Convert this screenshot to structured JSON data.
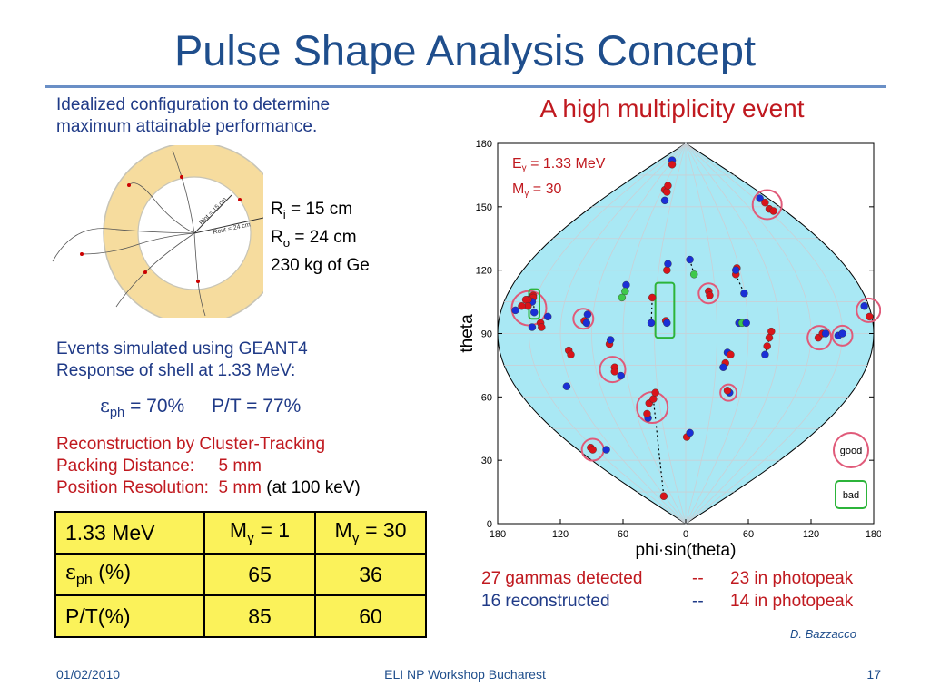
{
  "slide": {
    "title": "Pulse Shape Analysis Concept",
    "intro_line1": "Idealized configuration to determine",
    "intro_line2": "maximum attainable performance.",
    "shell": {
      "ri_label": "R",
      "ri_sub": "i",
      "ri_value": "  = 15 cm",
      "ro_label": "R",
      "ro_sub": "o",
      "ro_value": " = 24 cm",
      "mass": "230 kg of Ge",
      "inner_arrow_label": "Rint = 15 cm",
      "outer_arrow_label": "Rout = 24 cm",
      "colors": {
        "shell": "#f6dc9e",
        "shell_edge": "#c7c4b6"
      }
    },
    "events_line1": "Events simulated using GEANT4",
    "events_line2": "Response of shell at 1.33 MeV:",
    "eph_symbol": "ε",
    "eph_sub": "ph",
    "eph_value": " = 70%",
    "pt_value": "P/T = 77%",
    "recon_line1": "Reconstruction by Cluster-Tracking",
    "recon_line2": "Packing Distance:     5 mm",
    "recon_line3": "Position Resolution:  5 mm ",
    "recon_line3_black": "(at 100 keV)",
    "event_title": "A high multiplicity event",
    "table": {
      "h1": "1.33 MeV",
      "h2_pre": "M",
      "h2_sub": "γ",
      "h2_post": " = 1",
      "h3_pre": "M",
      "h3_sub": "γ",
      "h3_post": " = 30",
      "r1_sym": "ε",
      "r1_sub": "ph",
      "r1_post": " (%)",
      "r1_v1": "65",
      "r1_v2": "36",
      "r2_label": "P/T(%)",
      "r2_v1": "85",
      "r2_v2": "60"
    },
    "summary": {
      "l1_left": "27 gammas detected",
      "l1_sep": "--",
      "l1_right": "23 in photopeak",
      "l2_left": "16 reconstructed",
      "l2_sep": "--",
      "l2_right": "14 in photopeak"
    },
    "credit": "D. Bazzacco",
    "footer_date": "01/02/2010",
    "footer_center": "ELI NP Workshop Bucharest",
    "footer_page": "17"
  },
  "chart_data": {
    "type": "scatter",
    "projection": "sinusoidal",
    "xlabel": "phi·sin(theta)",
    "ylabel": "theta",
    "x_ticks": [
      "180",
      "120",
      "60",
      "0",
      "60",
      "120",
      "180"
    ],
    "y_ticks": [
      "0",
      "30",
      "60",
      "90",
      "120",
      "150",
      "180"
    ],
    "xlim": [
      -180,
      180
    ],
    "ylim": [
      0,
      180
    ],
    "annotation_energy": "E",
    "annotation_energy_sub": "γ",
    "annotation_energy_value": " = 1.33 MeV",
    "annotation_mult": "M",
    "annotation_mult_sub": "γ",
    "annotation_mult_value": " = 30",
    "legend_good": "good",
    "legend_bad": "bad",
    "colors": {
      "fill": "#a9e8f4",
      "good": "#e05a79",
      "bad": "#2cb43a",
      "red": "#d8141a",
      "blue": "#1a2fd6",
      "green": "#3fc84c"
    },
    "points": [
      {
        "x": -147,
        "y": 93,
        "c": "blue"
      },
      {
        "x": -146,
        "y": 108,
        "c": "red"
      },
      {
        "x": -146,
        "y": 107,
        "c": "red"
      },
      {
        "x": -147,
        "y": 105,
        "c": "blue"
      },
      {
        "x": -145,
        "y": 100,
        "c": "blue"
      },
      {
        "x": -151,
        "y": 106,
        "c": "red"
      },
      {
        "x": -153,
        "y": 106,
        "c": "red"
      },
      {
        "x": -151,
        "y": 103,
        "c": "red"
      },
      {
        "x": -157,
        "y": 103,
        "c": "red"
      },
      {
        "x": -163,
        "y": 101,
        "c": "blue"
      },
      {
        "x": -132,
        "y": 98,
        "c": "blue"
      },
      {
        "x": -139,
        "y": 95,
        "c": "red"
      },
      {
        "x": -138,
        "y": 93,
        "c": "red"
      },
      {
        "x": -114,
        "y": 65,
        "c": "blue"
      },
      {
        "x": -112,
        "y": 82,
        "c": "red"
      },
      {
        "x": -110,
        "y": 80,
        "c": "red"
      },
      {
        "x": -97,
        "y": 96,
        "c": "red"
      },
      {
        "x": -95,
        "y": 95,
        "c": "blue"
      },
      {
        "x": -94,
        "y": 99,
        "c": "blue"
      },
      {
        "x": -91,
        "y": 36,
        "c": "red"
      },
      {
        "x": -89,
        "y": 35,
        "c": "red"
      },
      {
        "x": -76,
        "y": 35,
        "c": "blue"
      },
      {
        "x": -73,
        "y": 85,
        "c": "red"
      },
      {
        "x": -72,
        "y": 87,
        "c": "blue"
      },
      {
        "x": -68,
        "y": 74,
        "c": "red"
      },
      {
        "x": -68,
        "y": 72,
        "c": "red"
      },
      {
        "x": -62,
        "y": 70,
        "c": "blue"
      },
      {
        "x": -57,
        "y": 113,
        "c": "blue"
      },
      {
        "x": -58,
        "y": 110,
        "c": "green"
      },
      {
        "x": -61,
        "y": 107,
        "c": "green"
      },
      {
        "x": -36,
        "y": 50,
        "c": "blue"
      },
      {
        "x": -37,
        "y": 52,
        "c": "red"
      },
      {
        "x": -35,
        "y": 57,
        "c": "red"
      },
      {
        "x": -31,
        "y": 59,
        "c": "red"
      },
      {
        "x": -29,
        "y": 62,
        "c": "red"
      },
      {
        "x": -33,
        "y": 95,
        "c": "blue"
      },
      {
        "x": -32,
        "y": 107,
        "c": "red"
      },
      {
        "x": -19,
        "y": 96,
        "c": "red"
      },
      {
        "x": -18,
        "y": 95,
        "c": "blue"
      },
      {
        "x": -21,
        "y": 13,
        "c": "red"
      },
      {
        "x": -13,
        "y": 172,
        "c": "blue"
      },
      {
        "x": -13,
        "y": 170,
        "c": "red"
      },
      {
        "x": -20,
        "y": 158,
        "c": "red"
      },
      {
        "x": -18,
        "y": 157,
        "c": "red"
      },
      {
        "x": -17,
        "y": 160,
        "c": "red"
      },
      {
        "x": -20,
        "y": 153,
        "c": "blue"
      },
      {
        "x": -18,
        "y": 120,
        "c": "red"
      },
      {
        "x": -17,
        "y": 123,
        "c": "blue"
      },
      {
        "x": 1,
        "y": 41,
        "c": "red"
      },
      {
        "x": 4,
        "y": 43,
        "c": "blue"
      },
      {
        "x": 4,
        "y": 125,
        "c": "blue"
      },
      {
        "x": 8,
        "y": 118,
        "c": "green"
      },
      {
        "x": 22,
        "y": 110,
        "c": "red"
      },
      {
        "x": 23,
        "y": 108,
        "c": "red"
      },
      {
        "x": 48,
        "y": 118,
        "c": "red"
      },
      {
        "x": 49,
        "y": 121,
        "c": "red"
      },
      {
        "x": 48,
        "y": 120,
        "c": "blue"
      },
      {
        "x": 56,
        "y": 109,
        "c": "blue"
      },
      {
        "x": 51,
        "y": 95,
        "c": "blue"
      },
      {
        "x": 54,
        "y": 95,
        "c": "green"
      },
      {
        "x": 58,
        "y": 95,
        "c": "blue"
      },
      {
        "x": 40,
        "y": 81,
        "c": "blue"
      },
      {
        "x": 38,
        "y": 76,
        "c": "red"
      },
      {
        "x": 36,
        "y": 74,
        "c": "blue"
      },
      {
        "x": 43,
        "y": 80,
        "c": "red"
      },
      {
        "x": 42,
        "y": 62,
        "c": "blue"
      },
      {
        "x": 40,
        "y": 63,
        "c": "red"
      },
      {
        "x": 82,
        "y": 91,
        "c": "red"
      },
      {
        "x": 80,
        "y": 88,
        "c": "red"
      },
      {
        "x": 78,
        "y": 84,
        "c": "red"
      },
      {
        "x": 76,
        "y": 80,
        "c": "blue"
      },
      {
        "x": 71,
        "y": 154,
        "c": "blue"
      },
      {
        "x": 76,
        "y": 152,
        "c": "red"
      },
      {
        "x": 80,
        "y": 149,
        "c": "red"
      },
      {
        "x": 84,
        "y": 148,
        "c": "red"
      },
      {
        "x": 127,
        "y": 88,
        "c": "red"
      },
      {
        "x": 131,
        "y": 90,
        "c": "red"
      },
      {
        "x": 134,
        "y": 90,
        "c": "blue"
      },
      {
        "x": 146,
        "y": 89,
        "c": "blue"
      },
      {
        "x": 150,
        "y": 90,
        "c": "blue"
      },
      {
        "x": 176,
        "y": 98,
        "c": "red"
      },
      {
        "x": 171,
        "y": 103,
        "c": "blue"
      }
    ],
    "links": [
      [
        [
          -145,
          100
        ],
        [
          -146,
          108
        ]
      ],
      [
        [
          -68,
          72
        ],
        [
          -62,
          70
        ]
      ],
      [
        [
          -57,
          113
        ],
        [
          -61,
          107
        ]
      ],
      [
        [
          -33,
          95
        ],
        [
          -32,
          107
        ]
      ],
      [
        [
          -31,
          59
        ],
        [
          -21,
          13
        ]
      ],
      [
        [
          4,
          125
        ],
        [
          8,
          118
        ]
      ],
      [
        [
          48,
          118
        ],
        [
          56,
          109
        ]
      ],
      [
        [
          82,
          91
        ],
        [
          76,
          80
        ]
      ],
      [
        [
          40,
          81
        ],
        [
          43,
          80
        ]
      ]
    ],
    "good_circles": [
      {
        "x": -150,
        "y": 102,
        "r": 19
      },
      {
        "x": -98,
        "y": 97,
        "r": 11
      },
      {
        "x": -89,
        "y": 35,
        "r": 12
      },
      {
        "x": -70,
        "y": 73,
        "r": 14
      },
      {
        "x": -32,
        "y": 55,
        "r": 17
      },
      {
        "x": 41,
        "y": 62,
        "r": 9
      },
      {
        "x": 22,
        "y": 109,
        "r": 11
      },
      {
        "x": 78,
        "y": 151,
        "r": 16
      },
      {
        "x": 128,
        "y": 88,
        "r": 13
      },
      {
        "x": 150,
        "y": 89,
        "r": 11
      },
      {
        "x": 175,
        "y": 101,
        "r": 13
      }
    ],
    "bad_boxes": [
      {
        "x": -145,
        "y": 104,
        "w": 10,
        "h": 14
      },
      {
        "x": -20,
        "y": 101,
        "w": 18,
        "h": 26
      }
    ]
  }
}
